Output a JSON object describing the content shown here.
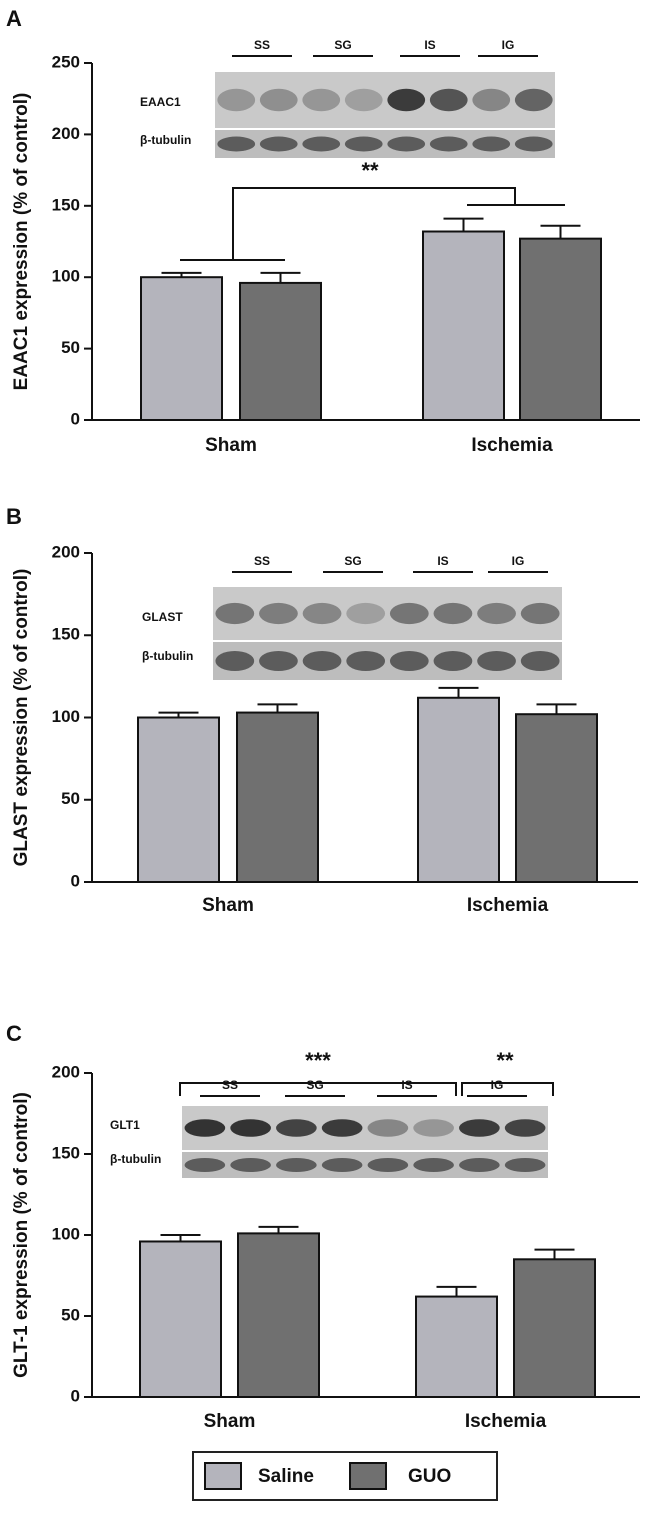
{
  "chart_data": [
    {
      "type": "bar",
      "panel_label": "A",
      "ylabel": "EAAC1 expression (% of control)",
      "categories": [
        "Sham",
        "Ischemia"
      ],
      "series": [
        {
          "name": "Saline",
          "color": "#b4b4bc",
          "values": [
            100,
            132
          ],
          "errors": [
            3,
            9
          ]
        },
        {
          "name": "GUO",
          "color": "#707070",
          "values": [
            96,
            127
          ],
          "errors": [
            7,
            9
          ]
        }
      ],
      "ylim": [
        0,
        250
      ],
      "yticks": [
        0,
        50,
        100,
        150,
        200,
        250
      ],
      "annotations": [
        "**"
      ],
      "blot": {
        "lanes": [
          "SS",
          "SG",
          "IS",
          "IG"
        ],
        "rows": [
          "EAAC1",
          "β-tubulin"
        ]
      }
    },
    {
      "type": "bar",
      "panel_label": "B",
      "ylabel": "GLAST expression (% of control)",
      "categories": [
        "Sham",
        "Ischemia"
      ],
      "series": [
        {
          "name": "Saline",
          "color": "#b4b4bc",
          "values": [
            100,
            112
          ],
          "errors": [
            3,
            6
          ]
        },
        {
          "name": "GUO",
          "color": "#707070",
          "values": [
            103,
            102
          ],
          "errors": [
            5,
            6
          ]
        }
      ],
      "ylim": [
        0,
        200
      ],
      "yticks": [
        0,
        50,
        100,
        150,
        200
      ],
      "annotations": [],
      "blot": {
        "lanes": [
          "SS",
          "SG",
          "IS",
          "IG"
        ],
        "rows": [
          "GLAST",
          "β-tubulin"
        ]
      }
    },
    {
      "type": "bar",
      "panel_label": "C",
      "ylabel": "GLT-1 expression (% of control)",
      "categories": [
        "Sham",
        "Ischemia"
      ],
      "series": [
        {
          "name": "Saline",
          "color": "#b4b4bc",
          "values": [
            96,
            62
          ],
          "errors": [
            4,
            6
          ]
        },
        {
          "name": "GUO",
          "color": "#707070",
          "values": [
            101,
            85
          ],
          "errors": [
            4,
            6
          ]
        }
      ],
      "ylim": [
        0,
        200
      ],
      "yticks": [
        0,
        50,
        100,
        150,
        200
      ],
      "annotations": [
        "***",
        "**"
      ],
      "blot": {
        "lanes": [
          "SS",
          "SG",
          "IS",
          "IG"
        ],
        "rows": [
          "GLT1",
          "β-tubulin"
        ]
      }
    }
  ]
}
